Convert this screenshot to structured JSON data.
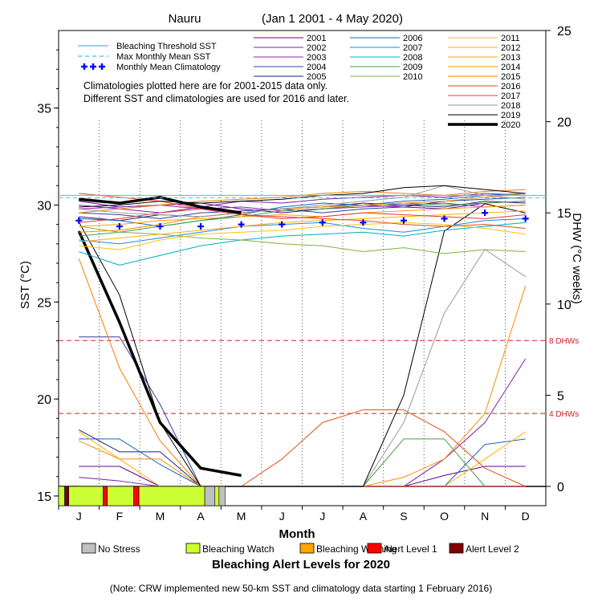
{
  "chart_data": {
    "type": "line",
    "title_location": "Nauru",
    "title_range": "(Jan 1 2001 - 4 May 2020)",
    "xlabel": "Month",
    "ylabel_left": "SST (°C)",
    "ylabel_right": "DHW (°C weeks)",
    "months": [
      "J",
      "F",
      "M",
      "A",
      "M",
      "J",
      "J",
      "A",
      "S",
      "O",
      "N",
      "D"
    ],
    "sst_axis": {
      "min": 14.5,
      "max": 39,
      "ticks": [
        15,
        20,
        25,
        30,
        35
      ]
    },
    "dhw_axis": {
      "min": 0,
      "max": 25,
      "ticks": [
        0,
        5,
        10,
        15,
        20,
        25
      ]
    },
    "grid": "dotted vertical month lines",
    "thresholds": [
      {
        "label": "8 DHWs",
        "dhw": 8
      },
      {
        "label": "4 DHWs",
        "dhw": 4
      }
    ],
    "reference_lines": {
      "bleaching_threshold_sst": 30.5,
      "max_monthly_mean_sst": 30.5
    },
    "climatology_note_1": "Climatologies plotted here are for 2001-2015 data only.",
    "climatology_note_2": "Different SST and climatologies are used for 2016 and later.",
    "legend_reference": [
      {
        "label": "Bleaching Threshold SST",
        "color": "#33ccdd",
        "style": "solid"
      },
      {
        "label": "Max Monthly Mean SST",
        "color": "#33ccdd",
        "style": "dashed"
      },
      {
        "label": "Monthly Mean Climatology",
        "color": "#0000ff",
        "style": "plus"
      }
    ],
    "monthly_mean_climatology": [
      29.2,
      28.9,
      28.9,
      28.9,
      29.0,
      29.0,
      29.1,
      29.1,
      29.2,
      29.3,
      29.6,
      29.3
    ],
    "years": [
      {
        "name": "2001",
        "color": "#660099",
        "width": 1
      },
      {
        "name": "2002",
        "color": "#7b1fa2",
        "width": 1
      },
      {
        "name": "2003",
        "color": "#8e24aa",
        "width": 1
      },
      {
        "name": "2004",
        "color": "#303f9f",
        "width": 1
      },
      {
        "name": "2005",
        "color": "#1a237e",
        "width": 1
      },
      {
        "name": "2006",
        "color": "#1565c0",
        "width": 1
      },
      {
        "name": "2007",
        "color": "#1e88e5",
        "width": 1
      },
      {
        "name": "2008",
        "color": "#00acc1",
        "width": 1
      },
      {
        "name": "2009",
        "color": "#43a047",
        "width": 1
      },
      {
        "name": "2010",
        "color": "#7cb342",
        "width": 1
      },
      {
        "name": "2011",
        "color": "#ffc107",
        "width": 1
      },
      {
        "name": "2012",
        "color": "#ffb300",
        "width": 1
      },
      {
        "name": "2013",
        "color": "#ffa000",
        "width": 1
      },
      {
        "name": "2014",
        "color": "#fb8c00",
        "width": 1
      },
      {
        "name": "2015",
        "color": "#f57c00",
        "width": 1
      },
      {
        "name": "2016",
        "color": "#e64a19",
        "width": 1
      },
      {
        "name": "2017",
        "color": "#e53935",
        "width": 1
      },
      {
        "name": "2018",
        "color": "#999999",
        "width": 1
      },
      {
        "name": "2019",
        "color": "#000000",
        "width": 1
      },
      {
        "name": "2020",
        "color": "#000000",
        "width": 3.5
      }
    ],
    "sst_series": [
      {
        "year": "2001",
        "values": [
          30.2,
          29.9,
          30.0,
          30.1,
          29.8,
          29.6,
          29.8,
          30.0,
          29.9,
          29.8,
          30.1,
          30.2
        ]
      },
      {
        "year": "2002",
        "values": [
          30.0,
          29.8,
          29.6,
          29.9,
          30.2,
          30.1,
          30.3,
          30.4,
          30.5,
          30.4,
          30.6,
          30.5
        ]
      },
      {
        "year": "2003",
        "values": [
          29.8,
          29.9,
          30.0,
          29.8,
          29.9,
          29.7,
          29.8,
          29.9,
          30.0,
          30.1,
          29.9,
          30.0
        ]
      },
      {
        "year": "2004",
        "values": [
          29.6,
          29.5,
          29.3,
          29.6,
          29.7,
          29.8,
          29.6,
          29.8,
          29.9,
          30.2,
          30.3,
          30.4
        ]
      },
      {
        "year": "2005",
        "values": [
          29.4,
          29.2,
          29.5,
          29.4,
          29.6,
          29.8,
          29.9,
          30.1,
          30.0,
          29.9,
          30.2,
          30.1
        ]
      },
      {
        "year": "2006",
        "values": [
          29.3,
          29.2,
          28.9,
          29.2,
          29.5,
          29.9,
          30.1,
          30.0,
          30.2,
          30.3,
          30.5,
          30.6
        ]
      },
      {
        "year": "2007",
        "values": [
          28.2,
          28.0,
          28.3,
          28.6,
          28.9,
          29.0,
          29.1,
          28.8,
          28.6,
          28.9,
          29.2,
          29.3
        ]
      },
      {
        "year": "2008",
        "values": [
          27.6,
          26.9,
          27.4,
          27.9,
          28.2,
          28.4,
          28.5,
          28.6,
          28.4,
          28.7,
          28.9,
          29.1
        ]
      },
      {
        "year": "2009",
        "values": [
          28.4,
          28.6,
          28.9,
          29.2,
          29.4,
          29.7,
          29.8,
          30.0,
          30.1,
          30.0,
          30.1,
          30.2
        ]
      },
      {
        "year": "2010",
        "values": [
          28.9,
          28.6,
          28.5,
          28.3,
          28.2,
          28.0,
          27.9,
          27.6,
          27.8,
          27.5,
          27.7,
          27.6
        ]
      },
      {
        "year": "2011",
        "values": [
          27.9,
          27.7,
          28.2,
          28.5,
          28.6,
          28.7,
          28.9,
          29.0,
          29.1,
          29.0,
          28.8,
          28.5
        ]
      },
      {
        "year": "2012",
        "values": [
          28.1,
          28.3,
          28.5,
          28.7,
          28.9,
          29.1,
          29.2,
          29.3,
          29.4,
          29.5,
          29.6,
          29.7
        ]
      },
      {
        "year": "2013",
        "values": [
          28.9,
          29.0,
          29.2,
          29.3,
          29.4,
          29.5,
          29.4,
          29.6,
          29.7,
          29.8,
          29.9,
          30.0
        ]
      },
      {
        "year": "2014",
        "values": [
          28.6,
          28.7,
          29.0,
          29.4,
          29.6,
          29.8,
          29.9,
          30.0,
          30.1,
          30.2,
          30.4,
          30.6
        ]
      },
      {
        "year": "2015",
        "values": [
          29.6,
          29.8,
          30.0,
          30.2,
          30.3,
          30.4,
          30.6,
          30.7,
          30.6,
          30.5,
          30.7,
          30.8
        ]
      },
      {
        "year": "2016",
        "values": [
          30.6,
          30.4,
          30.2,
          29.8,
          29.5,
          29.4,
          29.3,
          29.2,
          29.0,
          28.9,
          29.0,
          28.8
        ]
      },
      {
        "year": "2017",
        "values": [
          29.1,
          29.3,
          29.6,
          29.8,
          29.5,
          29.3,
          29.4,
          29.6,
          29.5,
          29.4,
          29.3,
          29.5
        ]
      },
      {
        "year": "2018",
        "values": [
          29.8,
          29.6,
          29.5,
          29.4,
          29.6,
          29.8,
          30.0,
          30.2,
          30.4,
          31.0,
          30.5,
          30.3
        ]
      },
      {
        "year": "2019",
        "values": [
          29.9,
          30.0,
          30.2,
          30.1,
          30.2,
          30.3,
          30.5,
          30.6,
          30.9,
          31.0,
          30.8,
          30.6
        ]
      },
      {
        "year": "2020",
        "values": [
          30.3,
          30.1,
          30.4,
          29.9,
          29.6
        ]
      }
    ],
    "dhw_series": [
      {
        "year": "2001",
        "values": [
          1.1,
          1.1,
          0,
          0,
          0,
          0,
          0,
          0,
          0,
          0.6,
          1.1,
          1.1
        ]
      },
      {
        "year": "2002",
        "values": [
          0.5,
          0.3,
          0,
          0,
          0,
          0,
          0,
          0,
          0,
          1.5,
          3.5,
          7.0
        ]
      },
      {
        "year": "2004",
        "values": [
          8.2,
          8.2,
          4.5,
          0,
          0,
          0,
          0,
          0,
          0,
          0,
          0,
          0
        ]
      },
      {
        "year": "2005",
        "values": [
          3.1,
          1.9,
          1.9,
          0,
          0,
          0,
          0,
          0,
          0,
          0,
          0,
          0
        ]
      },
      {
        "year": "2006",
        "values": [
          2.6,
          2.6,
          1.2,
          0,
          0,
          0,
          0,
          0,
          0,
          0,
          2.3,
          2.6
        ]
      },
      {
        "year": "2009",
        "values": [
          0,
          0,
          0,
          0,
          0,
          0,
          0,
          0,
          2.6,
          2.6,
          0,
          0
        ]
      },
      {
        "year": "2012",
        "values": [
          3.0,
          1.5,
          0,
          0,
          0,
          0,
          0,
          0,
          0,
          0,
          1.5,
          3.0
        ]
      },
      {
        "year": "2014",
        "values": [
          2.5,
          1.5,
          1.5,
          0,
          0,
          0,
          0,
          0,
          0.5,
          1.5,
          4.0,
          11.0
        ]
      },
      {
        "year": "2015",
        "values": [
          12.5,
          6.5,
          2.5,
          0,
          0,
          0,
          0,
          0,
          0,
          0,
          0,
          0
        ]
      },
      {
        "year": "2016",
        "values": [
          0,
          0,
          0,
          0,
          0,
          1.5,
          3.5,
          4.2,
          4.2,
          3.0,
          1.0,
          0
        ]
      },
      {
        "year": "2017",
        "values": [
          0,
          0,
          0,
          0,
          0,
          0,
          0,
          0,
          0,
          0,
          0,
          0
        ]
      },
      {
        "year": "2018",
        "values": [
          0,
          0,
          0,
          0,
          0,
          0,
          0,
          0,
          3.5,
          9.5,
          13.0,
          11.5
        ]
      },
      {
        "year": "2019",
        "values": [
          14.5,
          10.5,
          3.5,
          0,
          0,
          0,
          0,
          0,
          5.0,
          14.0,
          15.5,
          15.0
        ]
      },
      {
        "year": "2020",
        "values": [
          14.0,
          9.0,
          3.5,
          1.0,
          0.6
        ]
      }
    ]
  },
  "alert_legend": {
    "title": "Bleaching Alert Levels for 2020",
    "items": [
      {
        "label": "No Stress",
        "color": "#c0c0c0"
      },
      {
        "label": "Bleaching Watch",
        "color": "#ccff33"
      },
      {
        "label": "Bleaching Warning",
        "color": "#ffa500"
      },
      {
        "label": "Alert Level 1",
        "color": "#ff0000"
      },
      {
        "label": "Alert Level 2",
        "color": "#800000"
      }
    ]
  },
  "alert_bar_segments": [
    {
      "level": "Bleaching Watch",
      "start_month": 0.0,
      "end_month": 0.15
    },
    {
      "level": "Alert Level 2",
      "start_month": 0.15,
      "end_month": 0.25
    },
    {
      "level": "Bleaching Watch",
      "start_month": 0.25,
      "end_month": 1.1
    },
    {
      "level": "Alert Level 1",
      "start_month": 1.1,
      "end_month": 1.2
    },
    {
      "level": "Bleaching Watch",
      "start_month": 1.2,
      "end_month": 1.85
    },
    {
      "level": "Alert Level 1",
      "start_month": 1.85,
      "end_month": 1.98
    },
    {
      "level": "Bleaching Watch",
      "start_month": 1.98,
      "end_month": 3.6
    },
    {
      "level": "No Stress",
      "start_month": 3.6,
      "end_month": 3.85
    },
    {
      "level": "Bleaching Watch",
      "start_month": 3.85,
      "end_month": 3.95
    },
    {
      "level": "No Stress",
      "start_month": 3.95,
      "end_month": 4.1
    }
  ],
  "footnote": "(Note: CRW implemented new 50-km SST and climatology data starting 1 February 2016)"
}
